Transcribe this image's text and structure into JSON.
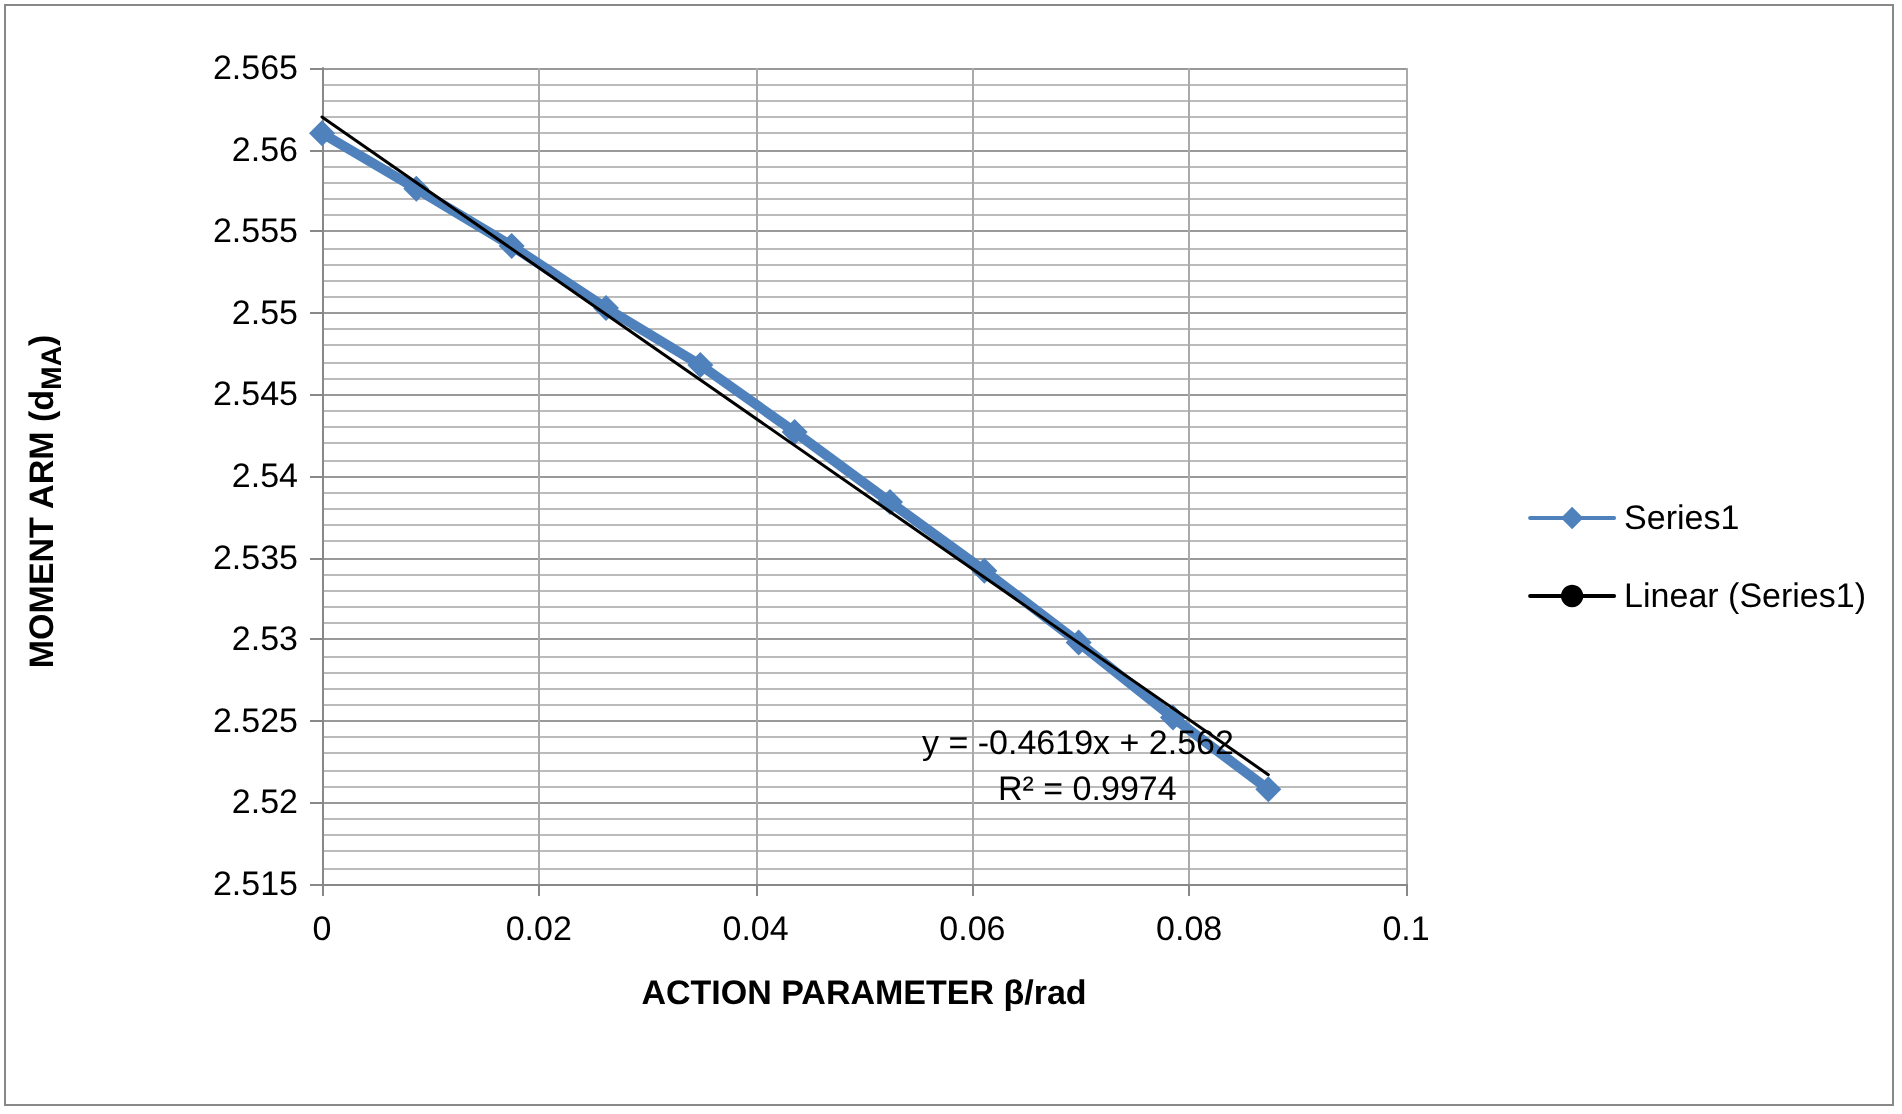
{
  "chart_data": {
    "type": "line",
    "xlabel": "ACTION PARAMETER β/rad",
    "ylabel": "MOMENT ARM (d$_{MA}$)",
    "x": [
      0,
      0.0087,
      0.0175,
      0.0262,
      0.0349,
      0.0436,
      0.0524,
      0.0611,
      0.0698,
      0.0785,
      0.0873
    ],
    "series": [
      {
        "name": "Series1",
        "color": "#4f81bd",
        "values": [
          2.561,
          2.5576,
          2.5541,
          2.5503,
          2.5468,
          2.5427,
          2.5384,
          2.5342,
          2.5298,
          2.5252,
          2.5208
        ],
        "marker": "diamond"
      },
      {
        "name": "Linear (Series1)",
        "color": "#000000",
        "x": [
          0,
          0.0873
        ],
        "values": [
          2.562,
          2.5217
        ],
        "marker": "none"
      }
    ],
    "xlim": [
      0,
      0.1
    ],
    "xticks": [
      0,
      0.02,
      0.04,
      0.06,
      0.08,
      0.1
    ],
    "ylim": [
      2.515,
      2.565
    ],
    "yticks": [
      2.515,
      2.52,
      2.525,
      2.53,
      2.535,
      2.54,
      2.545,
      2.55,
      2.555,
      2.56,
      2.565
    ],
    "grid": true,
    "legend": "right",
    "annotations": [
      "y = -0.4619x + 2.562",
      "R² = 0.9974"
    ]
  }
}
